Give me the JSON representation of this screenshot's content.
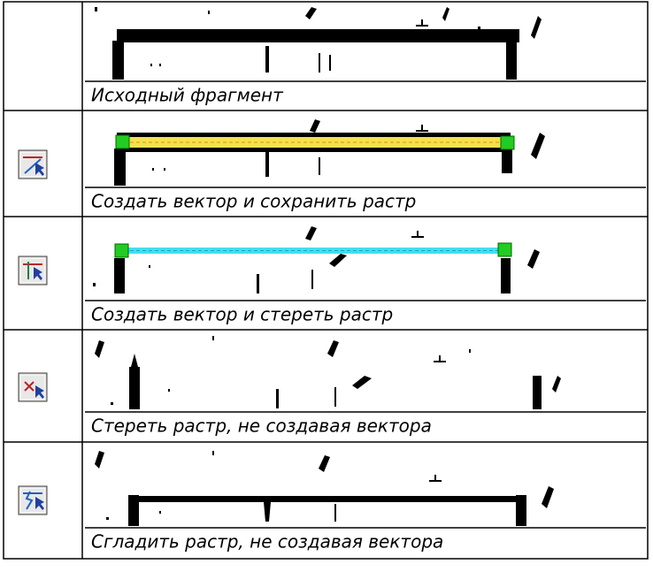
{
  "rows": [
    {
      "caption": "Исходный фрагмент"
    },
    {
      "caption": "Создать вектор и сохранить растр"
    },
    {
      "caption": "Создать вектор и стереть растр"
    },
    {
      "caption": "Стереть растр, не создавая вектора"
    },
    {
      "caption": "Сгладить растр, не создавая вектора"
    }
  ]
}
